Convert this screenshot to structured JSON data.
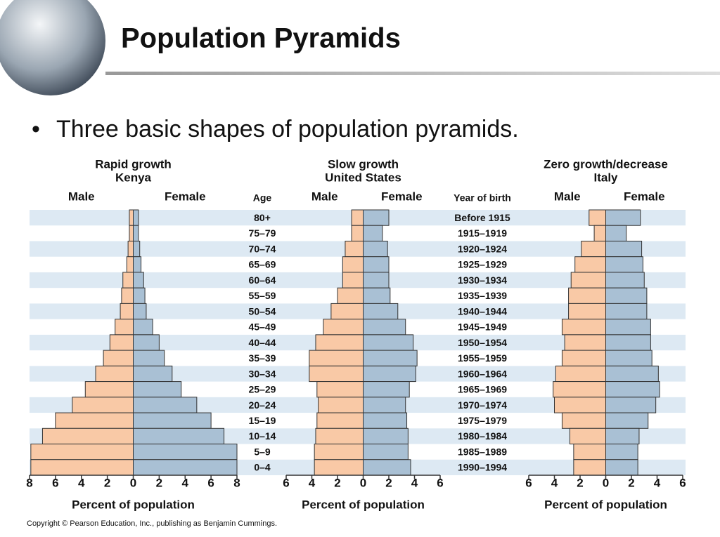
{
  "title": "Population Pyramids",
  "bullet": "Three basic shapes of population pyramids.",
  "copyright": "Copyright © Pearson Education, Inc., publishing as Benjamin Cummings.",
  "age_axis": {
    "label": "Age",
    "categories": [
      "80+",
      "75–79",
      "70–74",
      "65–69",
      "60–64",
      "55–59",
      "50–54",
      "45–49",
      "40–44",
      "35–39",
      "30–34",
      "25–29",
      "20–24",
      "15–19",
      "10–14",
      "5–9",
      "0–4"
    ]
  },
  "birth_axis": {
    "label": "Year of birth",
    "categories": [
      "Before 1915",
      "1915–1919",
      "1920–1924",
      "1925–1929",
      "1930–1934",
      "1935–1939",
      "1940–1944",
      "1945–1949",
      "1950–1954",
      "1955–1959",
      "1960–1964",
      "1965–1969",
      "1970–1974",
      "1975–1979",
      "1980–1984",
      "1985–1989",
      "1990–1994"
    ]
  },
  "chart_data": [
    {
      "type": "pyramid",
      "title": "Rapid growth",
      "subtitle": "Kenya",
      "x_label": "Percent of population",
      "xlim": [
        -8,
        8
      ],
      "xticks": [
        {
          "value": -8,
          "label": "8"
        },
        {
          "value": -6,
          "label": "6"
        },
        {
          "value": -4,
          "label": "4"
        },
        {
          "value": -2,
          "label": "2"
        },
        0,
        2,
        4,
        6,
        8
      ],
      "series": [
        {
          "name": "Male",
          "color": "#f9c9a6",
          "values": [
            -0.3,
            -0.3,
            -0.4,
            -0.5,
            -0.8,
            -0.9,
            -1.0,
            -1.4,
            -1.8,
            -2.3,
            -2.9,
            -3.7,
            -4.7,
            -6.0,
            -7.0,
            -7.9,
            -7.9
          ]
        },
        {
          "name": "Female",
          "color": "#a9c0d4",
          "values": [
            0.4,
            0.4,
            0.5,
            0.6,
            0.8,
            0.9,
            1.0,
            1.5,
            2.0,
            2.4,
            3.0,
            3.7,
            4.9,
            6.0,
            7.0,
            8.0,
            8.0
          ]
        }
      ]
    },
    {
      "type": "pyramid",
      "title": "Slow growth",
      "subtitle": "United States",
      "x_label": "Percent of population",
      "xlim": [
        -6,
        6
      ],
      "xticks": [
        {
          "value": -6,
          "label": "6"
        },
        {
          "value": -4,
          "label": "4"
        },
        {
          "value": -2,
          "label": "2"
        },
        0,
        2,
        4,
        6
      ],
      "series": [
        {
          "name": "Male",
          "color": "#f9c9a6",
          "values": [
            -0.9,
            -0.9,
            -1.4,
            -1.6,
            -1.6,
            -2.0,
            -2.5,
            -3.1,
            -3.7,
            -4.2,
            -4.2,
            -3.6,
            -3.5,
            -3.6,
            -3.7,
            -3.8,
            -3.8
          ]
        },
        {
          "name": "Female",
          "color": "#a9c0d4",
          "values": [
            2.0,
            1.5,
            1.9,
            2.0,
            2.0,
            2.1,
            2.7,
            3.3,
            3.9,
            4.2,
            4.1,
            3.6,
            3.3,
            3.4,
            3.5,
            3.5,
            3.7
          ]
        }
      ]
    },
    {
      "type": "pyramid",
      "title": "Zero growth/decrease",
      "subtitle": "Italy",
      "x_label": "Percent of population",
      "xlim": [
        -6,
        6
      ],
      "xticks": [
        {
          "value": -6,
          "label": "6"
        },
        {
          "value": -4,
          "label": "4"
        },
        {
          "value": -2,
          "label": "2"
        },
        0,
        2,
        4,
        6
      ],
      "series": [
        {
          "name": "Male",
          "color": "#f9c9a6",
          "values": [
            -1.3,
            -0.9,
            -1.9,
            -2.4,
            -2.7,
            -2.9,
            -2.9,
            -3.4,
            -3.2,
            -3.4,
            -3.9,
            -4.1,
            -4.0,
            -3.4,
            -2.8,
            -2.5,
            -2.5
          ]
        },
        {
          "name": "Female",
          "color": "#a9c0d4",
          "values": [
            2.7,
            1.6,
            2.8,
            2.9,
            3.0,
            3.2,
            3.2,
            3.5,
            3.5,
            3.6,
            4.1,
            4.2,
            3.9,
            3.3,
            2.6,
            2.5,
            2.5
          ]
        }
      ]
    }
  ]
}
